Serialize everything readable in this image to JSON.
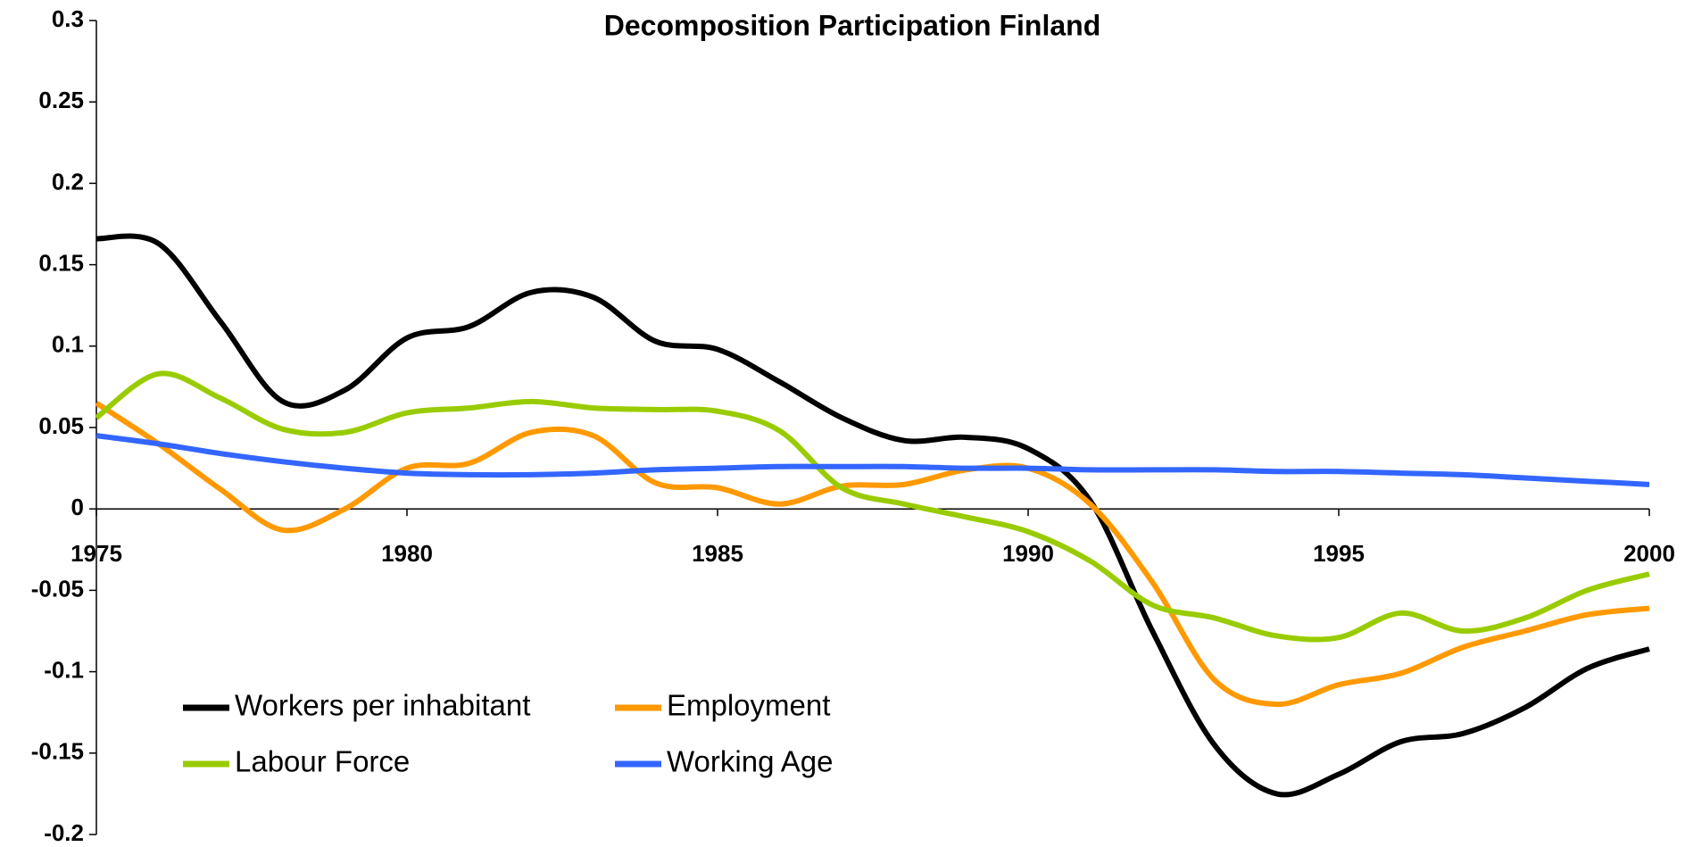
{
  "chart_data": {
    "type": "line",
    "title": "Decomposition Participation Finland",
    "x": [
      1975,
      1976,
      1977,
      1978,
      1979,
      1980,
      1981,
      1982,
      1983,
      1984,
      1985,
      1986,
      1987,
      1988,
      1989,
      1990,
      1991,
      1992,
      1993,
      1994,
      1995,
      1996,
      1997,
      1998,
      1999,
      2000
    ],
    "series": [
      {
        "name": "Workers per inhabitant",
        "color": "#000000",
        "values": [
          0.166,
          0.163,
          0.115,
          0.066,
          0.073,
          0.105,
          0.112,
          0.133,
          0.13,
          0.103,
          0.098,
          0.078,
          0.056,
          0.042,
          0.044,
          0.037,
          0.005,
          -0.075,
          -0.145,
          -0.175,
          -0.163,
          -0.143,
          -0.138,
          -0.122,
          -0.098,
          -0.086
        ]
      },
      {
        "name": "Employment",
        "color": "#ff9900",
        "values": [
          0.065,
          0.04,
          0.012,
          -0.013,
          0.0,
          0.025,
          0.028,
          0.047,
          0.045,
          0.016,
          0.013,
          0.003,
          0.014,
          0.015,
          0.024,
          0.025,
          0.003,
          -0.045,
          -0.105,
          -0.12,
          -0.108,
          -0.101,
          -0.085,
          -0.075,
          -0.065,
          -0.061
        ]
      },
      {
        "name": "Labour Force",
        "color": "#99cc00",
        "values": [
          0.056,
          0.083,
          0.068,
          0.049,
          0.047,
          0.059,
          0.062,
          0.066,
          0.062,
          0.061,
          0.06,
          0.048,
          0.013,
          0.003,
          -0.005,
          -0.014,
          -0.032,
          -0.059,
          -0.067,
          -0.078,
          -0.079,
          -0.064,
          -0.075,
          -0.067,
          -0.05,
          -0.04
        ]
      },
      {
        "name": "Working Age",
        "color": "#3366ff",
        "values": [
          0.045,
          0.04,
          0.034,
          0.029,
          0.025,
          0.022,
          0.021,
          0.021,
          0.022,
          0.024,
          0.025,
          0.026,
          0.026,
          0.026,
          0.025,
          0.025,
          0.024,
          0.024,
          0.024,
          0.023,
          0.023,
          0.022,
          0.021,
          0.019,
          0.017,
          0.015
        ]
      }
    ],
    "xlim": [
      1975,
      2000
    ],
    "xticks": [
      1975,
      1980,
      1985,
      1990,
      1995,
      2000
    ],
    "ylim": [
      -0.2,
      0.3
    ],
    "yticks": [
      0.3,
      0.25,
      0.2,
      0.15,
      0.1,
      0.05,
      0,
      -0.05,
      -0.1,
      -0.15,
      -0.2
    ],
    "grid": false,
    "legend": "lower left"
  }
}
